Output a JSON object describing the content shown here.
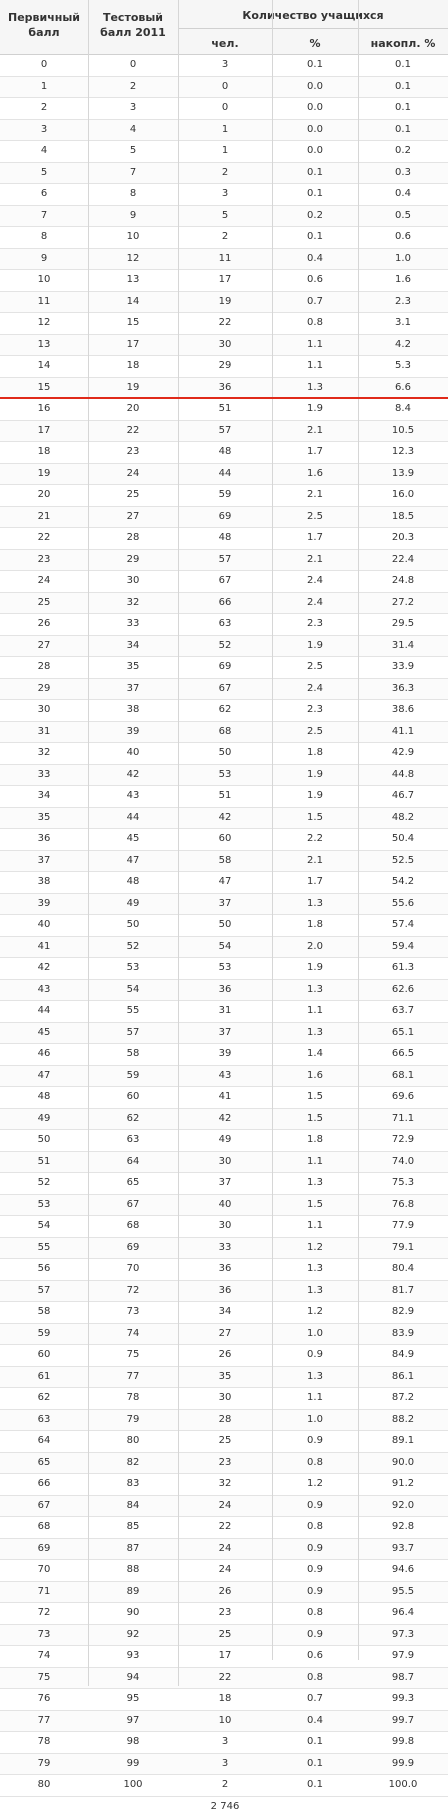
{
  "table": {
    "header": {
      "primary": "Первичный балл",
      "test": "Тестовый балл 2011",
      "count": "Количество учащихся",
      "people": "чел.",
      "percent": "%",
      "cumulative": "накопл. %"
    },
    "rows": [
      [
        "0",
        "0",
        "3",
        "0.1",
        "0.1"
      ],
      [
        "1",
        "2",
        "0",
        "0.0",
        "0.1"
      ],
      [
        "2",
        "3",
        "0",
        "0.0",
        "0.1"
      ],
      [
        "3",
        "4",
        "1",
        "0.0",
        "0.1"
      ],
      [
        "4",
        "5",
        "1",
        "0.0",
        "0.2"
      ],
      [
        "5",
        "7",
        "2",
        "0.1",
        "0.3"
      ],
      [
        "6",
        "8",
        "3",
        "0.1",
        "0.4"
      ],
      [
        "7",
        "9",
        "5",
        "0.2",
        "0.5"
      ],
      [
        "8",
        "10",
        "2",
        "0.1",
        "0.6"
      ],
      [
        "9",
        "12",
        "11",
        "0.4",
        "1.0"
      ],
      [
        "10",
        "13",
        "17",
        "0.6",
        "1.6"
      ],
      [
        "11",
        "14",
        "19",
        "0.7",
        "2.3"
      ],
      [
        "12",
        "15",
        "22",
        "0.8",
        "3.1"
      ],
      [
        "13",
        "17",
        "30",
        "1.1",
        "4.2"
      ],
      [
        "14",
        "18",
        "29",
        "1.1",
        "5.3"
      ],
      [
        "15",
        "19",
        "36",
        "1.3",
        "6.6"
      ],
      [
        "16",
        "20",
        "51",
        "1.9",
        "8.4"
      ],
      [
        "17",
        "22",
        "57",
        "2.1",
        "10.5"
      ],
      [
        "18",
        "23",
        "48",
        "1.7",
        "12.3"
      ],
      [
        "19",
        "24",
        "44",
        "1.6",
        "13.9"
      ],
      [
        "20",
        "25",
        "59",
        "2.1",
        "16.0"
      ],
      [
        "21",
        "27",
        "69",
        "2.5",
        "18.5"
      ],
      [
        "22",
        "28",
        "48",
        "1.7",
        "20.3"
      ],
      [
        "23",
        "29",
        "57",
        "2.1",
        "22.4"
      ],
      [
        "24",
        "30",
        "67",
        "2.4",
        "24.8"
      ],
      [
        "25",
        "32",
        "66",
        "2.4",
        "27.2"
      ],
      [
        "26",
        "33",
        "63",
        "2.3",
        "29.5"
      ],
      [
        "27",
        "34",
        "52",
        "1.9",
        "31.4"
      ],
      [
        "28",
        "35",
        "69",
        "2.5",
        "33.9"
      ],
      [
        "29",
        "37",
        "67",
        "2.4",
        "36.3"
      ],
      [
        "30",
        "38",
        "62",
        "2.3",
        "38.6"
      ],
      [
        "31",
        "39",
        "68",
        "2.5",
        "41.1"
      ],
      [
        "32",
        "40",
        "50",
        "1.8",
        "42.9"
      ],
      [
        "33",
        "42",
        "53",
        "1.9",
        "44.8"
      ],
      [
        "34",
        "43",
        "51",
        "1.9",
        "46.7"
      ],
      [
        "35",
        "44",
        "42",
        "1.5",
        "48.2"
      ],
      [
        "36",
        "45",
        "60",
        "2.2",
        "50.4"
      ],
      [
        "37",
        "47",
        "58",
        "2.1",
        "52.5"
      ],
      [
        "38",
        "48",
        "47",
        "1.7",
        "54.2"
      ],
      [
        "39",
        "49",
        "37",
        "1.3",
        "55.6"
      ],
      [
        "40",
        "50",
        "50",
        "1.8",
        "57.4"
      ],
      [
        "41",
        "52",
        "54",
        "2.0",
        "59.4"
      ],
      [
        "42",
        "53",
        "53",
        "1.9",
        "61.3"
      ],
      [
        "43",
        "54",
        "36",
        "1.3",
        "62.6"
      ],
      [
        "44",
        "55",
        "31",
        "1.1",
        "63.7"
      ],
      [
        "45",
        "57",
        "37",
        "1.3",
        "65.1"
      ],
      [
        "46",
        "58",
        "39",
        "1.4",
        "66.5"
      ],
      [
        "47",
        "59",
        "43",
        "1.6",
        "68.1"
      ],
      [
        "48",
        "60",
        "41",
        "1.5",
        "69.6"
      ],
      [
        "49",
        "62",
        "42",
        "1.5",
        "71.1"
      ],
      [
        "50",
        "63",
        "49",
        "1.8",
        "72.9"
      ],
      [
        "51",
        "64",
        "30",
        "1.1",
        "74.0"
      ],
      [
        "52",
        "65",
        "37",
        "1.3",
        "75.3"
      ],
      [
        "53",
        "67",
        "40",
        "1.5",
        "76.8"
      ],
      [
        "54",
        "68",
        "30",
        "1.1",
        "77.9"
      ],
      [
        "55",
        "69",
        "33",
        "1.2",
        "79.1"
      ],
      [
        "56",
        "70",
        "36",
        "1.3",
        "80.4"
      ],
      [
        "57",
        "72",
        "36",
        "1.3",
        "81.7"
      ],
      [
        "58",
        "73",
        "34",
        "1.2",
        "82.9"
      ],
      [
        "59",
        "74",
        "27",
        "1.0",
        "83.9"
      ],
      [
        "60",
        "75",
        "26",
        "0.9",
        "84.9"
      ],
      [
        "61",
        "77",
        "35",
        "1.3",
        "86.1"
      ],
      [
        "62",
        "78",
        "30",
        "1.1",
        "87.2"
      ],
      [
        "63",
        "79",
        "28",
        "1.0",
        "88.2"
      ],
      [
        "64",
        "80",
        "25",
        "0.9",
        "89.1"
      ],
      [
        "65",
        "82",
        "23",
        "0.8",
        "90.0"
      ],
      [
        "66",
        "83",
        "32",
        "1.2",
        "91.2"
      ],
      [
        "67",
        "84",
        "24",
        "0.9",
        "92.0"
      ],
      [
        "68",
        "85",
        "22",
        "0.8",
        "92.8"
      ],
      [
        "69",
        "87",
        "24",
        "0.9",
        "93.7"
      ],
      [
        "70",
        "88",
        "24",
        "0.9",
        "94.6"
      ],
      [
        "71",
        "89",
        "26",
        "0.9",
        "95.5"
      ],
      [
        "72",
        "90",
        "23",
        "0.8",
        "96.4"
      ],
      [
        "73",
        "92",
        "25",
        "0.9",
        "97.3"
      ],
      [
        "74",
        "93",
        "17",
        "0.6",
        "97.9"
      ],
      [
        "75",
        "94",
        "22",
        "0.8",
        "98.7"
      ],
      [
        "76",
        "95",
        "18",
        "0.7",
        "99.3"
      ],
      [
        "77",
        "97",
        "10",
        "0.4",
        "99.7"
      ],
      [
        "78",
        "98",
        "3",
        "0.1",
        "99.8"
      ],
      [
        "79",
        "99",
        "3",
        "0.1",
        "99.9"
      ],
      [
        "80",
        "100",
        "2",
        "0.1",
        "100.0"
      ]
    ],
    "total": "2 746",
    "threshold_after_primary": "15",
    "colors": {
      "threshold_line": "#e02a1a",
      "header_bg": "#f6f6f6"
    }
  }
}
